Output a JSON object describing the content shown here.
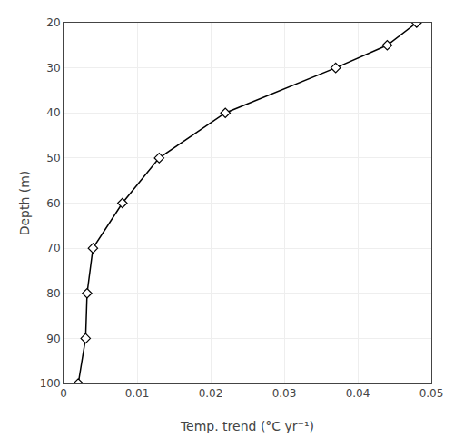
{
  "chart_data": {
    "type": "line",
    "xlabel": "Temp. trend (°C yr⁻¹)",
    "ylabel": "Depth (m)",
    "x": [
      0.002,
      0.003,
      0.0032,
      0.004,
      0.008,
      0.013,
      0.022,
      0.037,
      0.044,
      0.048
    ],
    "values": [
      100,
      90,
      80,
      70,
      60,
      50,
      40,
      30,
      25,
      20
    ],
    "color": "#000000",
    "marker": "diamond",
    "line_style": "solid",
    "xlim": [
      0,
      0.05
    ],
    "ylim": [
      100,
      20
    ],
    "xticks": [
      0,
      0.01,
      0.02,
      0.03,
      0.04,
      0.05
    ],
    "yticks": [
      20,
      30,
      40,
      50,
      60,
      70,
      80,
      90,
      100
    ],
    "grid": true
  }
}
